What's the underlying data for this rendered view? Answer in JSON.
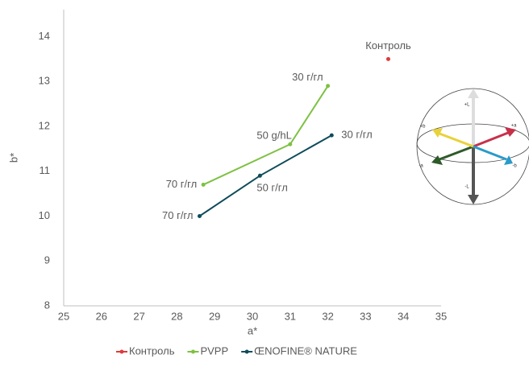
{
  "chart_data": {
    "type": "line",
    "x_label": "a*",
    "y_label": "b*",
    "xlim": [
      25,
      35
    ],
    "xticks": [
      25,
      26,
      27,
      28,
      29,
      30,
      31,
      32,
      33,
      34,
      35
    ],
    "ylim": [
      8,
      14.6
    ],
    "yticks": [
      8,
      9,
      10,
      11,
      12,
      13,
      14
    ],
    "grid": false,
    "legend": "bottom",
    "series": [
      {
        "name": "Контроль",
        "color": "#e03a3a",
        "x": [
          33.6
        ],
        "values": [
          13.5
        ],
        "point_labels": [
          "Контроль"
        ]
      },
      {
        "name": "PVPP",
        "color": "#7dc142",
        "x": [
          28.7,
          31.0,
          32.0
        ],
        "values": [
          10.7,
          11.6,
          12.9
        ],
        "point_labels": [
          "70 г/гл",
          "50 g/hL",
          "30 г/гл"
        ]
      },
      {
        "name": "ŒNOFINE® NATURE",
        "color": "#0e4c5a",
        "x": [
          28.6,
          30.2,
          32.1
        ],
        "values": [
          10.0,
          10.9,
          11.8
        ],
        "point_labels": [
          "70 г/гл",
          "50 г/гл",
          "30 г/гл"
        ]
      }
    ],
    "sphere_labels": [
      "+L",
      "-L",
      "+a",
      "-a",
      "+b",
      "-b"
    ]
  }
}
